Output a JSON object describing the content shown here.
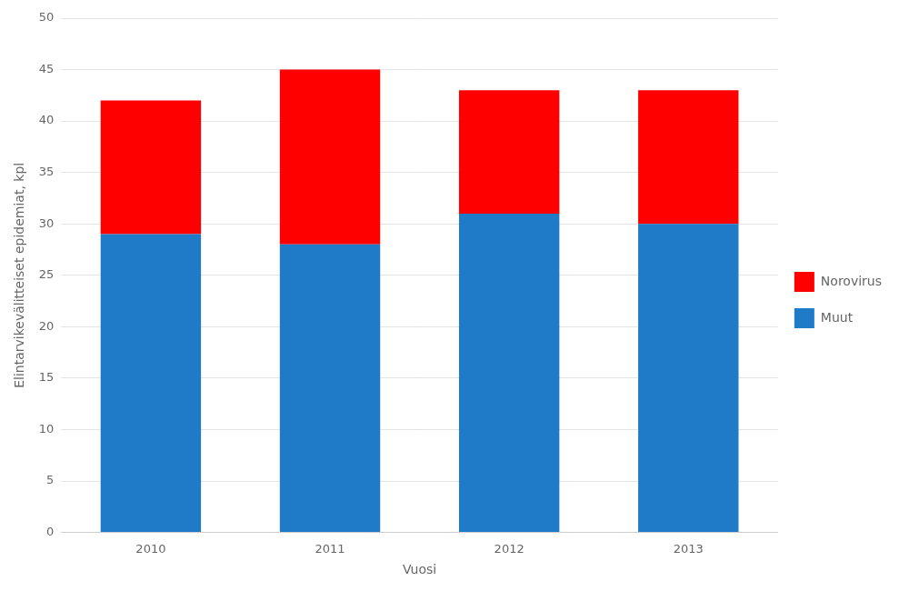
{
  "chart_data": {
    "type": "bar",
    "stacked": true,
    "xlabel": "Vuosi",
    "ylabel": "Elintarvikevälitteiset epidemiat, kpl",
    "categories": [
      "2010",
      "2011",
      "2012",
      "2013"
    ],
    "series": [
      {
        "name": "Muut",
        "color": "#1F7BC8",
        "values": [
          29,
          28,
          31,
          30
        ]
      },
      {
        "name": "Norovirus",
        "color": "#FF0000",
        "values": [
          13,
          17,
          12,
          13
        ]
      }
    ],
    "ylim": [
      0,
      50
    ],
    "yticks": [
      0,
      5,
      10,
      15,
      20,
      25,
      30,
      35,
      40,
      45,
      50
    ],
    "grid": true,
    "legend": "right"
  }
}
